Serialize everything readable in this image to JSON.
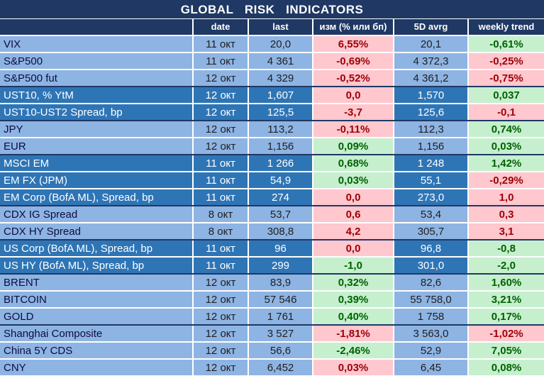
{
  "title": "GLOBAL   RISK   INDICATORS",
  "headers": [
    "",
    "date",
    "last",
    "изм (% или бп)",
    "5D avrg",
    "weekly trend"
  ],
  "groups": [
    {
      "shade": "lt",
      "rows": [
        {
          "name": "VIX",
          "date": "11 окт",
          "last": "20,0",
          "chg": "6,55%",
          "chg_s": "neg",
          "avg": "20,1",
          "trend": "-0,61%",
          "trend_s": "pos"
        },
        {
          "name": "S&P500",
          "date": "11 окт",
          "last": "4 361",
          "chg": "-0,69%",
          "chg_s": "neg",
          "avg": "4 372,3",
          "trend": "-0,25%",
          "trend_s": "neg"
        },
        {
          "name": "S&P500 fut",
          "date": "12 окт",
          "last": "4 329",
          "chg": "-0,52%",
          "chg_s": "neg",
          "avg": "4 361,2",
          "trend": "-0,75%",
          "trend_s": "neg"
        }
      ]
    },
    {
      "shade": "dk",
      "rows": [
        {
          "name": "UST10, % YtM",
          "date": "12 окт",
          "last": "1,607",
          "chg": "0,0",
          "chg_s": "neg",
          "avg": "1,570",
          "trend": "0,037",
          "trend_s": "pos"
        },
        {
          "name": "UST10-UST2 Spread, bp",
          "date": "12 окт",
          "last": "125,5",
          "chg": "-3,7",
          "chg_s": "neg",
          "avg": "125,6",
          "trend": "-0,1",
          "trend_s": "neg"
        }
      ]
    },
    {
      "shade": "lt",
      "rows": [
        {
          "name": "JPY",
          "date": "12 окт",
          "last": "113,2",
          "chg": "-0,11%",
          "chg_s": "neg",
          "avg": "112,3",
          "trend": "0,74%",
          "trend_s": "pos"
        },
        {
          "name": "EUR",
          "date": "12 окт",
          "last": "1,156",
          "chg": "0,09%",
          "chg_s": "pos",
          "avg": "1,156",
          "trend": "0,03%",
          "trend_s": "pos"
        }
      ]
    },
    {
      "shade": "dk",
      "rows": [
        {
          "name": "MSCI EM",
          "date": "11 окт",
          "last": "1 266",
          "chg": "0,68%",
          "chg_s": "pos",
          "avg": "1 248",
          "trend": "1,42%",
          "trend_s": "pos"
        },
        {
          "name": "EM FX (JPM)",
          "date": "11 окт",
          "last": "54,9",
          "chg": "0,03%",
          "chg_s": "pos",
          "avg": "55,1",
          "trend": "-0,29%",
          "trend_s": "neg"
        },
        {
          "name": "EM Corp (BofA ML), Spread, bp",
          "date": "11 окт",
          "last": "274",
          "chg": "0,0",
          "chg_s": "neg",
          "avg": "273,0",
          "trend": "1,0",
          "trend_s": "neg"
        }
      ]
    },
    {
      "shade": "lt",
      "rows": [
        {
          "name": "CDX IG Spread",
          "date": "8 окт",
          "last": "53,7",
          "chg": "0,6",
          "chg_s": "neg",
          "avg": "53,4",
          "trend": "0,3",
          "trend_s": "neg"
        },
        {
          "name": "CDX HY Spread",
          "date": "8 окт",
          "last": "308,8",
          "chg": "4,2",
          "chg_s": "neg",
          "avg": "305,7",
          "trend": "3,1",
          "trend_s": "neg"
        }
      ]
    },
    {
      "shade": "dk",
      "rows": [
        {
          "name": "US Corp (BofA ML), Spread, bp",
          "date": "11 окт",
          "last": "96",
          "chg": "0,0",
          "chg_s": "neg",
          "avg": "96,8",
          "trend": "-0,8",
          "trend_s": "pos"
        },
        {
          "name": "US HY (BofA ML), Spread, bp",
          "date": "11 окт",
          "last": "299",
          "chg": "-1,0",
          "chg_s": "pos",
          "avg": "301,0",
          "trend": "-2,0",
          "trend_s": "pos"
        }
      ]
    },
    {
      "shade": "lt",
      "rows": [
        {
          "name": "BRENT",
          "date": "12 окт",
          "last": "83,9",
          "chg": "0,32%",
          "chg_s": "pos",
          "avg": "82,6",
          "trend": "1,60%",
          "trend_s": "pos"
        },
        {
          "name": "BITCOIN",
          "date": "12 окт",
          "last": "57 546",
          "chg": "0,39%",
          "chg_s": "pos",
          "avg": "55 758,0",
          "trend": "3,21%",
          "trend_s": "pos"
        },
        {
          "name": "GOLD",
          "date": "12 окт",
          "last": "1 761",
          "chg": "0,40%",
          "chg_s": "pos",
          "avg": "1 758",
          "trend": "0,17%",
          "trend_s": "pos"
        }
      ]
    },
    {
      "shade": "lt",
      "rows": [
        {
          "name": "Shanghai Composite",
          "date": "12 окт",
          "last": "3 527",
          "chg": "-1,81%",
          "chg_s": "neg",
          "avg": "3 563,0",
          "trend": "-1,02%",
          "trend_s": "neg"
        },
        {
          "name": "China 5Y CDS",
          "date": "12 окт",
          "last": "56,6",
          "chg": "-2,46%",
          "chg_s": "pos",
          "avg": "52,9",
          "trend": "7,05%",
          "trend_s": "pos"
        },
        {
          "name": "CNY",
          "date": "12 окт",
          "last": "6,452",
          "chg": "0,03%",
          "chg_s": "neg",
          "avg": "6,45",
          "trend": "0,08%",
          "trend_s": "pos"
        }
      ]
    }
  ],
  "colors": {
    "header_bg": "#1f3864",
    "light_row": "#8eb4e3",
    "dark_row": "#2e75b6",
    "neg_bg": "#ffc7ce",
    "neg_fg": "#9c0006",
    "pos_bg": "#c6efce",
    "pos_fg": "#006100"
  }
}
